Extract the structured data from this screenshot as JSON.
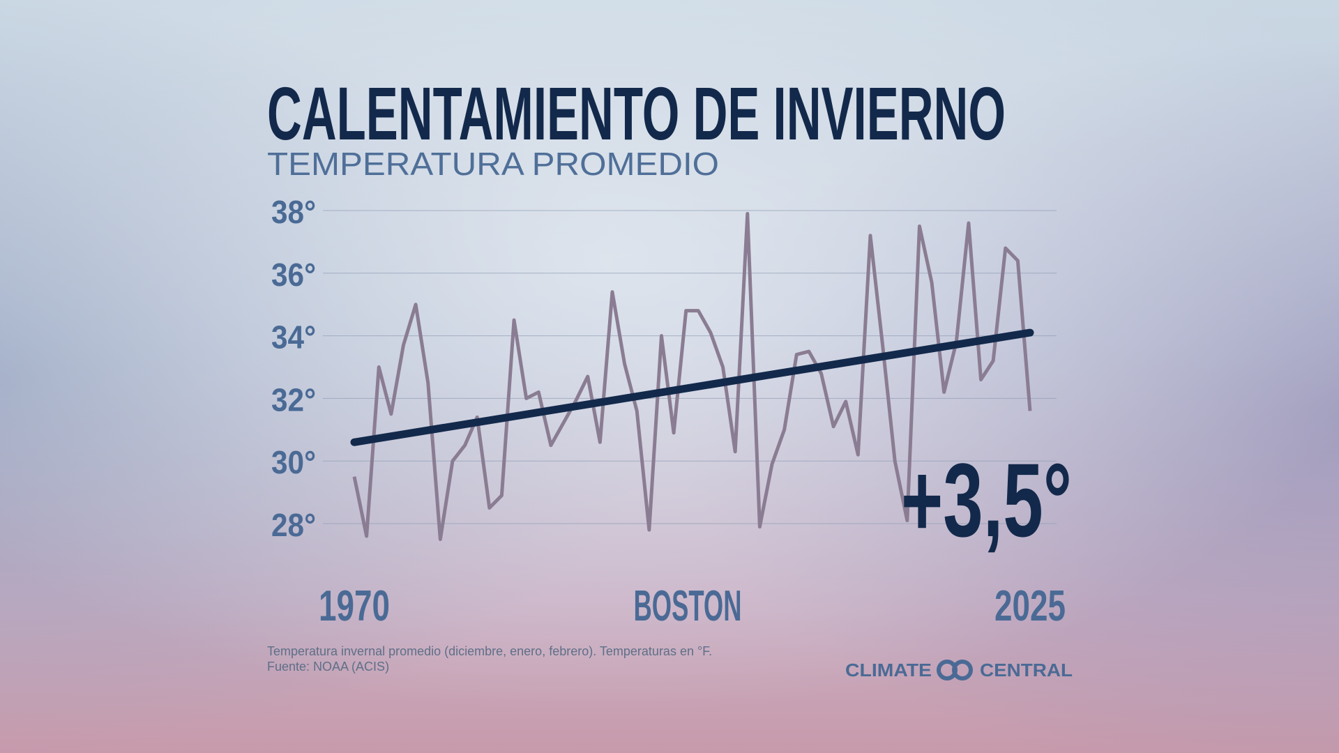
{
  "chart_data": {
    "type": "line",
    "title": "CALENTAMIENTO DE INVIERNO",
    "subtitle": "TEMPERATURA PROMEDIO",
    "x": [
      1970,
      1971,
      1972,
      1973,
      1974,
      1975,
      1976,
      1977,
      1978,
      1979,
      1980,
      1981,
      1982,
      1983,
      1984,
      1985,
      1986,
      1987,
      1988,
      1989,
      1990,
      1991,
      1992,
      1993,
      1994,
      1995,
      1996,
      1997,
      1998,
      1999,
      2000,
      2001,
      2002,
      2003,
      2004,
      2005,
      2006,
      2007,
      2008,
      2009,
      2010,
      2011,
      2012,
      2013,
      2014,
      2015,
      2016,
      2017,
      2018,
      2019,
      2020,
      2021,
      2022,
      2023,
      2024,
      2025
    ],
    "series": [
      {
        "color": "#8a7c92",
        "values": [
          29.5,
          27.6,
          33.0,
          31.5,
          33.7,
          35.0,
          32.5,
          27.5,
          30.0,
          30.5,
          31.4,
          28.5,
          28.9,
          34.5,
          32.0,
          32.2,
          30.5,
          31.2,
          31.9,
          32.7,
          30.6,
          35.4,
          33.1,
          31.6,
          27.8,
          34.0,
          30.9,
          34.8,
          34.8,
          34.1,
          33.0,
          30.3,
          37.9,
          27.9,
          29.9,
          31.0,
          33.4,
          33.5,
          32.8,
          31.1,
          31.9,
          30.2,
          37.2,
          33.7,
          30.0,
          28.1,
          37.5,
          35.7,
          32.2,
          33.8,
          37.6,
          32.6,
          33.2,
          36.8,
          36.4,
          31.6
        ]
      }
    ],
    "trend": {
      "color": "#13294b",
      "x": [
        1970,
        2025
      ],
      "values": [
        30.6,
        34.1
      ]
    },
    "xlim": [
      1970,
      2025
    ],
    "xticks": [
      1970,
      2025
    ],
    "ylim": [
      28,
      38
    ],
    "yticks": [
      {
        "value": 28,
        "label": "28°"
      },
      {
        "value": 30,
        "label": "30°"
      },
      {
        "value": 32,
        "label": "32°"
      },
      {
        "value": 34,
        "label": "34°"
      },
      {
        "value": 36,
        "label": "36°"
      },
      {
        "value": 38,
        "label": "38°"
      }
    ],
    "grid": true,
    "annotations": [
      "BOSTON",
      "+3,5°"
    ],
    "notes": [
      "Temperatura invernal promedio (diciembre, enero, febrero). Temperaturas en °F.",
      "Fuente: NOAA (ACIS)"
    ],
    "logo": [
      "CLIMATE",
      "CENTRAL"
    ]
  }
}
